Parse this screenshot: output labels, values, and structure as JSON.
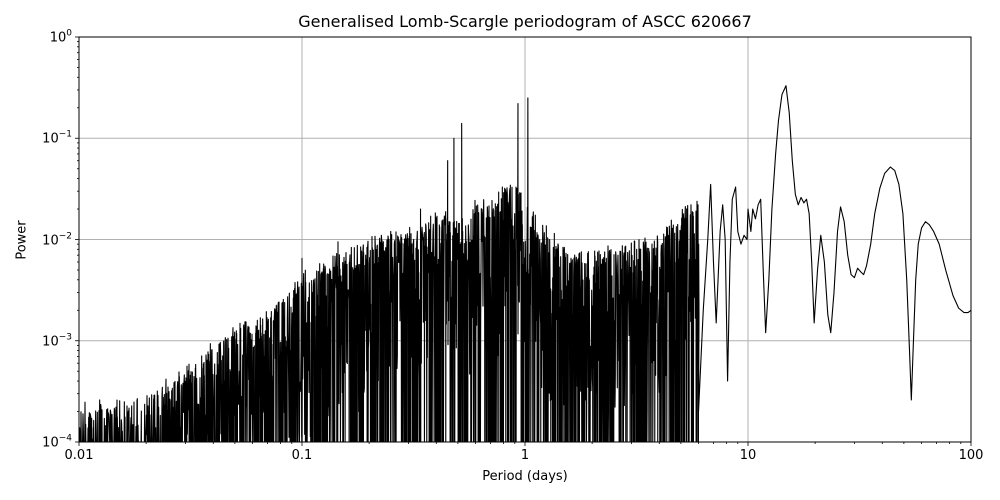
{
  "chart_data": {
    "type": "line",
    "title": "Generalised Lomb-Scargle periodogram of ASCC 620667",
    "xlabel": "Period (days)",
    "ylabel": "Power",
    "xscale": "log",
    "yscale": "log",
    "xlim": [
      0.01,
      100
    ],
    "ylim": [
      0.0001,
      1
    ],
    "grid": true,
    "legend": null,
    "line_color": "#000000",
    "grid_color": "#b0b0b0",
    "x_ticks": [
      {
        "value": 0.01,
        "label": "0.01"
      },
      {
        "value": 0.1,
        "label": "0.1"
      },
      {
        "value": 1,
        "label": "1"
      },
      {
        "value": 10,
        "label": "10"
      },
      {
        "value": 100,
        "label": "100"
      }
    ],
    "y_ticks": [
      {
        "value": 0.0001,
        "base": "10",
        "exp": "−4"
      },
      {
        "value": 0.001,
        "base": "10",
        "exp": "−3"
      },
      {
        "value": 0.01,
        "base": "10",
        "exp": "−2"
      },
      {
        "value": 0.1,
        "base": "10",
        "exp": "−1"
      },
      {
        "value": 1,
        "base": "10",
        "exp": "0"
      }
    ],
    "noisy_region_envelope": {
      "description": "Upper envelope of dense aliased forest for period < ~6 d",
      "period": [
        0.01,
        0.02,
        0.03,
        0.05,
        0.07,
        0.1,
        0.15,
        0.2,
        0.3,
        0.4,
        0.5,
        0.7,
        0.9,
        1.2,
        1.6,
        2.0,
        3.0,
        4.0,
        6.0
      ],
      "power": [
        0.00025,
        0.0003,
        0.0006,
        0.0015,
        0.002,
        0.005,
        0.008,
        0.011,
        0.013,
        0.02,
        0.02,
        0.03,
        0.04,
        0.015,
        0.008,
        0.009,
        0.01,
        0.012,
        0.03
      ]
    },
    "notable_peaks": [
      {
        "period": 0.1,
        "power": 0.0065
      },
      {
        "period": 0.145,
        "power": 0.0095
      },
      {
        "period": 0.25,
        "power": 0.012
      },
      {
        "period": 0.34,
        "power": 0.02
      },
      {
        "period": 0.45,
        "power": 0.06
      },
      {
        "period": 0.48,
        "power": 0.1
      },
      {
        "period": 0.52,
        "power": 0.14
      },
      {
        "period": 0.93,
        "power": 0.22
      },
      {
        "period": 1.03,
        "power": 0.25
      },
      {
        "period": 6.8,
        "power": 0.035
      },
      {
        "period": 14.8,
        "power": 0.33
      },
      {
        "period": 26.0,
        "power": 0.021
      },
      {
        "period": 44.0,
        "power": 0.05
      },
      {
        "period": 63.0,
        "power": 0.015
      }
    ],
    "smooth_region": {
      "description": "Resolved smooth curve for long periods",
      "period": [
        6.0,
        6.3,
        6.6,
        6.8,
        7.0,
        7.2,
        7.5,
        7.7,
        7.9,
        8.1,
        8.3,
        8.5,
        8.8,
        9.0,
        9.3,
        9.6,
        9.9,
        10.0,
        10.3,
        10.5,
        10.8,
        11.1,
        11.4,
        11.7,
        12.0,
        12.4,
        12.8,
        13.3,
        13.7,
        14.2,
        14.8,
        15.3,
        15.8,
        16.3,
        16.8,
        17.3,
        17.8,
        18.3,
        18.8,
        19.3,
        19.8,
        20.5,
        21.2,
        22.0,
        22.8,
        23.5,
        24.3,
        25.2,
        26.0,
        27.0,
        28.0,
        29.0,
        30.0,
        31.0,
        32.0,
        33.0,
        34.0,
        35.5,
        37.0,
        39.0,
        41.0,
        43.5,
        45.5,
        47.5,
        49.5,
        51.5,
        53.0,
        54.0,
        55.0,
        56.5,
        58.0,
        60.0,
        62.5,
        65.0,
        68.0,
        72.0,
        77.0,
        83.0,
        88.0,
        93.0,
        97.0,
        100.0
      ],
      "power": [
        0.0002,
        0.002,
        0.01,
        0.035,
        0.006,
        0.0015,
        0.012,
        0.022,
        0.01,
        0.0004,
        0.006,
        0.025,
        0.033,
        0.012,
        0.009,
        0.011,
        0.01,
        0.02,
        0.012,
        0.02,
        0.016,
        0.022,
        0.025,
        0.005,
        0.0012,
        0.004,
        0.02,
        0.07,
        0.15,
        0.27,
        0.33,
        0.18,
        0.06,
        0.028,
        0.022,
        0.026,
        0.023,
        0.025,
        0.018,
        0.006,
        0.0015,
        0.005,
        0.011,
        0.006,
        0.0018,
        0.0012,
        0.003,
        0.012,
        0.021,
        0.015,
        0.007,
        0.0045,
        0.0042,
        0.0052,
        0.0048,
        0.0045,
        0.0055,
        0.009,
        0.018,
        0.032,
        0.045,
        0.052,
        0.048,
        0.035,
        0.018,
        0.004,
        0.0008,
        0.00026,
        0.0008,
        0.004,
        0.009,
        0.013,
        0.015,
        0.014,
        0.012,
        0.009,
        0.005,
        0.0028,
        0.0021,
        0.0019,
        0.0019,
        0.002
      ]
    }
  },
  "axes": {
    "title": "Generalised Lomb-Scargle periodogram of ASCC 620667",
    "xlabel": "Period (days)",
    "ylabel": "Power",
    "xtick_labels": [
      "0.01",
      "0.1",
      "1",
      "10",
      "100"
    ],
    "ytick_bases": [
      "10",
      "10",
      "10",
      "10",
      "10"
    ],
    "ytick_exps": [
      "0",
      "−1",
      "−2",
      "−3",
      "−4"
    ]
  }
}
